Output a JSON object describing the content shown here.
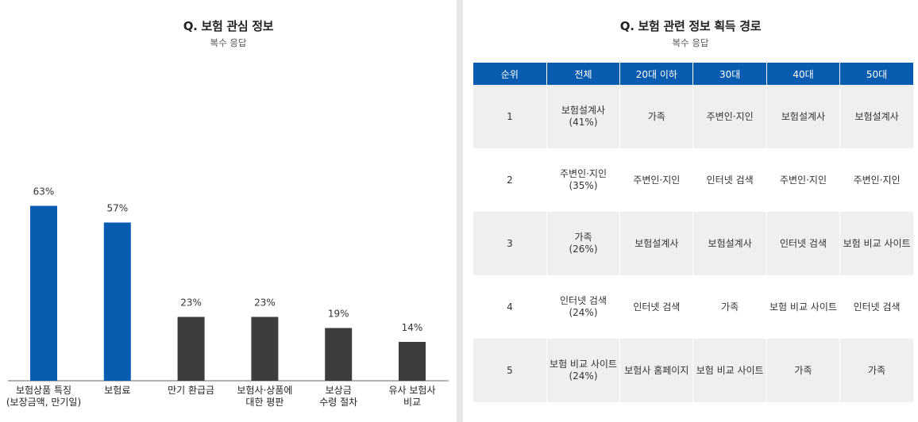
{
  "left": {
    "title": "Q. 보험 관심 정보",
    "subtitle": "복수 응답"
  },
  "right": {
    "title": "Q. 보험 관련 정보 획득 경로",
    "subtitle": "복수 응답",
    "table": {
      "headers": [
        "순위",
        "전체",
        "20대 이하",
        "30대",
        "40대",
        "50대"
      ],
      "rows": [
        [
          "1",
          "보험설계사\n(41%)",
          "가족",
          "주변인·지인",
          "보험설계사",
          "보험설계사"
        ],
        [
          "2",
          "주변인·지인\n(35%)",
          "주변인·지인",
          "인터넷 검색",
          "주변인·지인",
          "주변인·지인"
        ],
        [
          "3",
          "가족\n(26%)",
          "보험설계사",
          "보험설계사",
          "인터넷 검색",
          "보험 비교 사이트"
        ],
        [
          "4",
          "인터넷 검색\n(24%)",
          "인터넷 검색",
          "가족",
          "보험 비교 사이트",
          "인터넷 검색"
        ],
        [
          "5",
          "보험 비교 사이트\n(24%)",
          "보험사 홈페이지",
          "보험 비교 사이트",
          "가족",
          "가족"
        ]
      ]
    }
  },
  "colors": {
    "highlight": "#0a5cb0",
    "default": "#3d3d3d",
    "header_bg": "#0a5cb0",
    "row_alt": "#efefef"
  },
  "chart_data": {
    "type": "bar",
    "title": "Q. 보험 관심 정보",
    "subtitle": "복수 응답",
    "categories": [
      [
        "보험상품 특징",
        "(보장금액, 만기일)"
      ],
      [
        "보험료"
      ],
      [
        "만기 환급금"
      ],
      [
        "보험사·상품에",
        "대한 평판"
      ],
      [
        "보상금",
        "수령 절차"
      ],
      [
        "유사 보험사",
        "비교"
      ]
    ],
    "values": [
      63,
      57,
      23,
      23,
      19,
      14
    ],
    "value_labels": [
      "63%",
      "57%",
      "23%",
      "23%",
      "19%",
      "14%"
    ],
    "highlighted": [
      true,
      true,
      false,
      false,
      false,
      false
    ],
    "ylim": [
      0,
      100
    ],
    "grid": false
  }
}
